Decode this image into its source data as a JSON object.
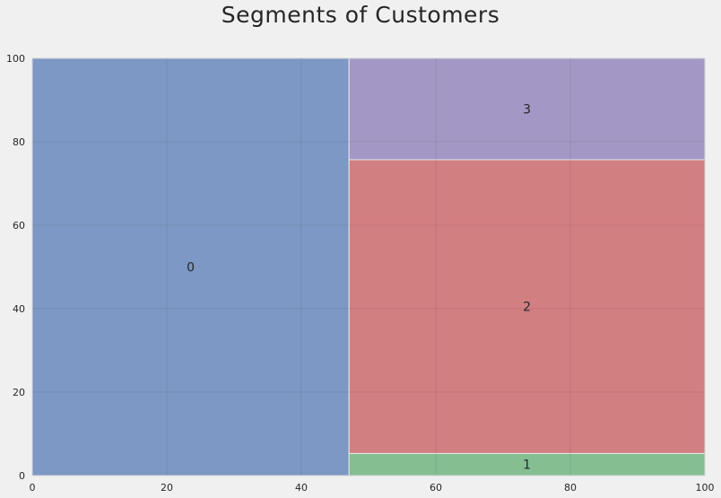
{
  "chart_data": {
    "type": "treemap",
    "title": "Segments of Customers",
    "xlim": [
      0,
      100
    ],
    "ylim": [
      0,
      100
    ],
    "xticks": [
      0,
      20,
      40,
      60,
      80,
      100
    ],
    "yticks": [
      0,
      20,
      40,
      60,
      80,
      100
    ],
    "grid": true,
    "rectangles": [
      {
        "label": "0",
        "x": 0,
        "y": 0,
        "dx": 47.1,
        "dy": 100,
        "color": "#4c72b0"
      },
      {
        "label": "1",
        "x": 47.1,
        "y": 0,
        "dx": 52.9,
        "dy": 5.3,
        "color": "#55a868"
      },
      {
        "label": "2",
        "x": 47.1,
        "y": 5.3,
        "dx": 52.9,
        "dy": 70.4,
        "color": "#c44e52"
      },
      {
        "label": "3",
        "x": 47.1,
        "y": 75.7,
        "dx": 52.9,
        "dy": 24.3,
        "color": "#8172b2"
      }
    ]
  }
}
